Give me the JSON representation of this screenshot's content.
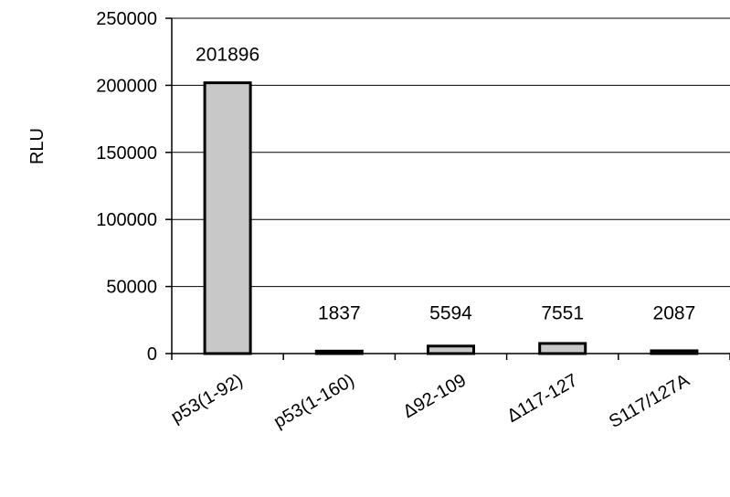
{
  "chart_data": {
    "type": "bar",
    "title": "",
    "xlabel": "",
    "ylabel": "RLU",
    "ylim": [
      0,
      250000
    ],
    "yticks": [
      0,
      50000,
      100000,
      150000,
      200000,
      250000
    ],
    "ytick_labels": [
      "0",
      "50000",
      "100000",
      "150000",
      "200000",
      "250000"
    ],
    "grid": true,
    "legend": "none",
    "categories": [
      "p53(1-92)",
      "p53(1-160)",
      "Δ92-109",
      "Δ117-127",
      "S117/127A"
    ],
    "values": [
      201896,
      1837,
      5594,
      7551,
      2087
    ],
    "data_labels": [
      "201896",
      "1837",
      "5594",
      "7551",
      "2087"
    ],
    "bar_fill": "#c8c8c8",
    "bar_stroke": "#000000"
  }
}
